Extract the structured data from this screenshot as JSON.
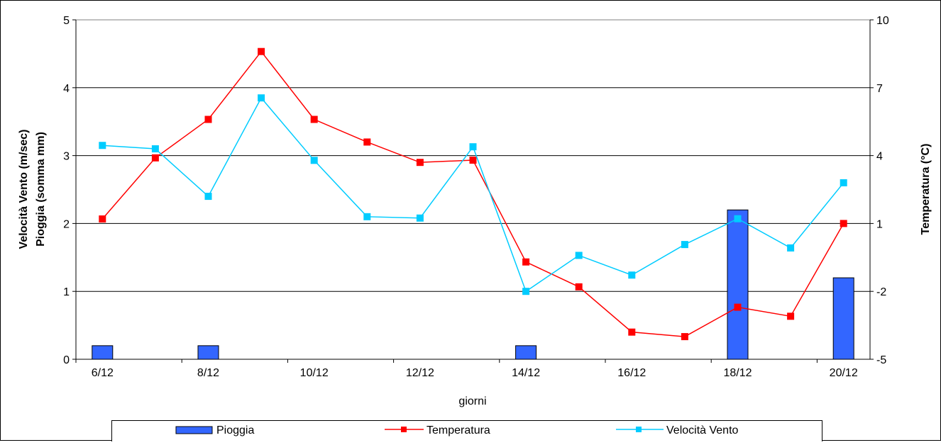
{
  "chart_data": {
    "type": "bar+line",
    "title": "",
    "xlabel": "giorni",
    "ylabel_left": [
      "Velocità Vento (m/sec)",
      "Pioggia (somma mm)"
    ],
    "ylabel_right": "Temperatura (°C)",
    "categories": [
      "6/12",
      "7/12",
      "8/12",
      "9/12",
      "10/12",
      "11/12",
      "12/12",
      "13/12",
      "14/12",
      "15/12",
      "16/12",
      "17/12",
      "18/12",
      "19/12",
      "20/12"
    ],
    "x_tick_labels": [
      "6/12",
      "",
      "8/12",
      "",
      "10/12",
      "",
      "12/12",
      "",
      "14/12",
      "",
      "16/12",
      "",
      "18/12",
      "",
      "20/12"
    ],
    "y_left": {
      "min": 0,
      "max": 5,
      "ticks": [
        "0",
        "1",
        "2",
        "3",
        "4",
        "5"
      ]
    },
    "y_right": {
      "min": -5,
      "max": 10,
      "ticks": [
        "-5",
        "-2",
        "1",
        "4",
        "7",
        "10"
      ]
    },
    "grid": "horizontal",
    "legend_position": "bottom",
    "series": [
      {
        "name": "Pioggia",
        "kind": "bar",
        "axis": "left",
        "color": "#3366ff",
        "values": [
          0.2,
          0,
          0.2,
          0,
          0,
          0,
          0,
          0,
          0.2,
          0,
          0,
          0,
          2.2,
          0,
          1.2
        ]
      },
      {
        "name": "Temperatura",
        "kind": "line",
        "axis": "right",
        "color": "#ff0000",
        "values": [
          1.2,
          3.9,
          5.6,
          8.6,
          5.6,
          4.6,
          3.7,
          3.8,
          -0.7,
          -1.8,
          -3.8,
          -4.0,
          -2.7,
          -3.1,
          1.0
        ]
      },
      {
        "name": "Velocità Vento",
        "kind": "line",
        "axis": "left",
        "color": "#00ccff",
        "values": [
          3.15,
          3.1,
          2.4,
          3.85,
          2.93,
          2.1,
          2.08,
          3.13,
          1.0,
          1.53,
          1.24,
          1.69,
          2.07,
          1.64,
          2.6
        ]
      }
    ]
  }
}
